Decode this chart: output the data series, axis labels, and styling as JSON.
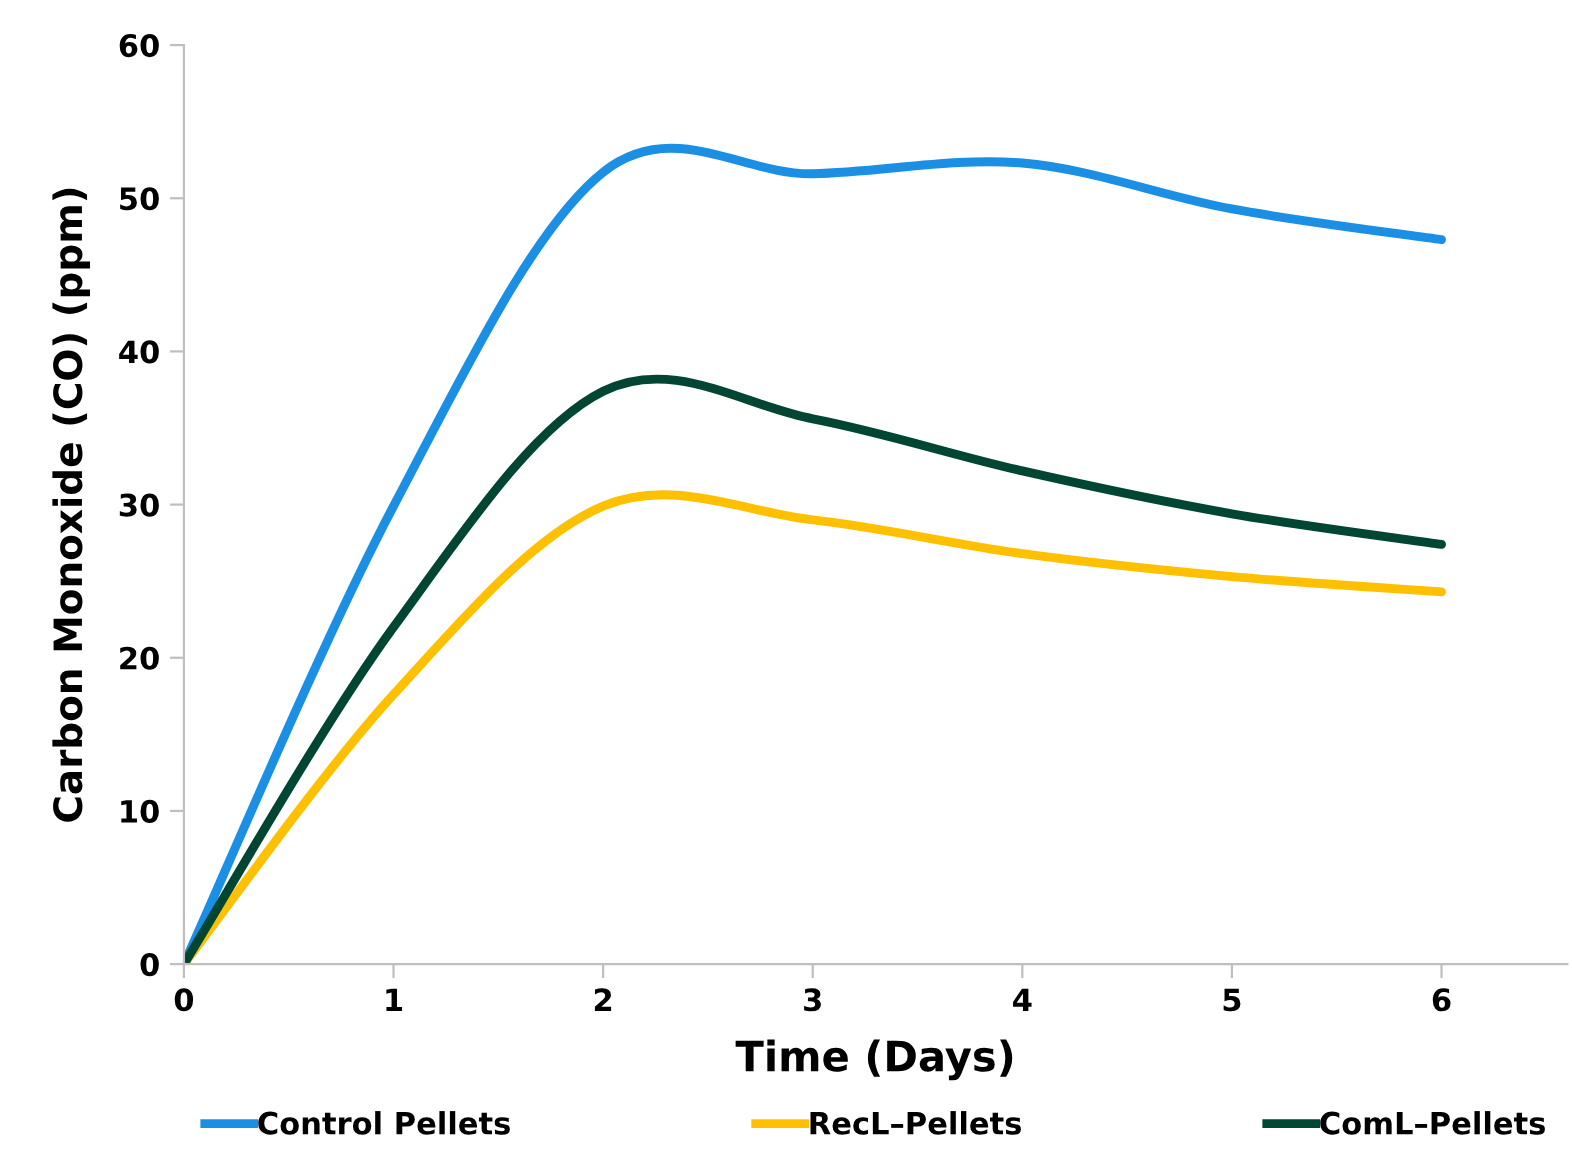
{
  "chart_data": {
    "type": "line",
    "xlabel": "Time (Days)",
    "ylabel": "Carbon Monoxide (CO) (ppm)",
    "x": [
      0,
      1,
      2,
      3,
      4,
      5,
      6
    ],
    "series": [
      {
        "name": "Control Pellets",
        "color": "#1a8fe3",
        "values": [
          0,
          29.9,
          51.7,
          51.6,
          52.3,
          49.3,
          47.3
        ]
      },
      {
        "name": "RecL–Pellets",
        "color": "#ffc000",
        "values": [
          0,
          17.6,
          29.9,
          29.0,
          26.8,
          25.3,
          24.3
        ]
      },
      {
        "name": "ComL–Pellets",
        "color": "#004632",
        "values": [
          0,
          22.0,
          37.4,
          35.6,
          32.2,
          29.4,
          27.4
        ]
      }
    ],
    "xlim": [
      0,
      6.6
    ],
    "xticks": [
      0,
      1,
      2,
      3,
      4,
      5,
      6
    ],
    "ylim": [
      0,
      60
    ],
    "yticks": [
      0,
      10,
      20,
      30,
      40,
      50,
      60
    ],
    "grid": false,
    "legend": "bottom",
    "marker": "none",
    "line_style": "solid"
  }
}
